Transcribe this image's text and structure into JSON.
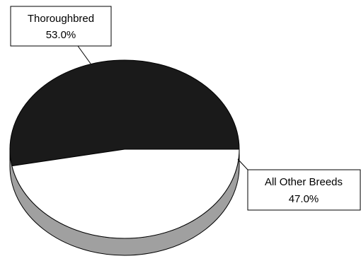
{
  "colors": {
    "slice_thoroughbred": "#1a1a1a",
    "slice_other": "#ffffff",
    "side_wall": "#a0a0a0",
    "outline": "#000000"
  },
  "chart_data": {
    "type": "pie",
    "style": "3d",
    "title": "",
    "slices": [
      {
        "label": "Thoroughbred",
        "value": 53.0,
        "value_label": "53.0%"
      },
      {
        "label": "All Other Breeds",
        "value": 47.0,
        "value_label": "47.0%"
      }
    ]
  }
}
